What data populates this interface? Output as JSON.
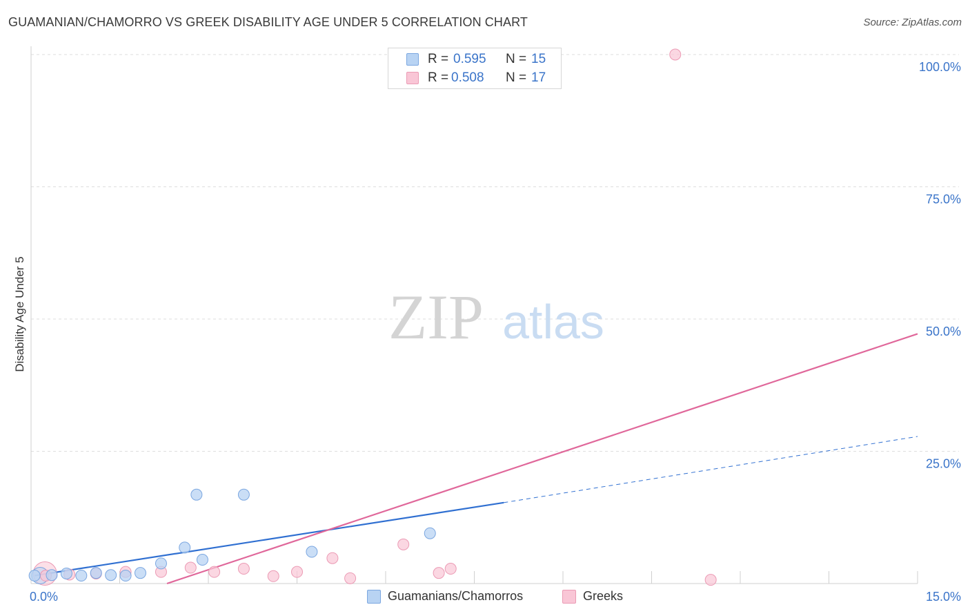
{
  "header": {
    "title": "GUAMANIAN/CHAMORRO VS GREEK DISABILITY AGE UNDER 5 CORRELATION CHART",
    "source": "Source: ZipAtlas.com"
  },
  "watermark": {
    "zip": "ZIP",
    "atlas": "atlas"
  },
  "legend_top": {
    "rows": [
      {
        "r_label": "R =",
        "r_value": "0.595",
        "n_label": "N =",
        "n_value": "15"
      },
      {
        "r_label": "R =",
        "r_value": "0.508",
        "n_label": "N =",
        "n_value": "17"
      }
    ]
  },
  "legend_bottom": {
    "series1": "Guamanians/Chamorros",
    "series2": "Greeks"
  },
  "colors": {
    "blue_fill": "#b8d3f3",
    "blue_stroke": "#7aa6e0",
    "blue_line": "#2f6fd1",
    "pink_fill": "#f9c6d6",
    "pink_stroke": "#eb9ab4",
    "pink_line": "#e0679a",
    "tick_label": "#3a74c9"
  },
  "chart_data": {
    "type": "scatter",
    "title": "GUAMANIAN/CHAMORRO VS GREEK DISABILITY AGE UNDER 5 CORRELATION CHART",
    "xlabel": "",
    "ylabel": "Disability Age Under 5",
    "xlim": [
      0,
      15
    ],
    "ylim": [
      0,
      100
    ],
    "x_tick_labels": [
      "0.0%",
      "15.0%"
    ],
    "y_ticks": [
      25,
      50,
      75,
      100
    ],
    "y_tick_labels": [
      "25.0%",
      "50.0%",
      "75.0%",
      "100.0%"
    ],
    "grid": true,
    "series": [
      {
        "name": "Guamanians/Chamorros",
        "r": 0.595,
        "n": 15,
        "points": [
          {
            "x": 0.06,
            "y": 1.5
          },
          {
            "x": 0.35,
            "y": 1.6
          },
          {
            "x": 0.6,
            "y": 1.9
          },
          {
            "x": 0.85,
            "y": 1.5
          },
          {
            "x": 1.1,
            "y": 2.0
          },
          {
            "x": 1.35,
            "y": 1.6
          },
          {
            "x": 1.6,
            "y": 1.5
          },
          {
            "x": 1.85,
            "y": 2.0
          },
          {
            "x": 2.2,
            "y": 3.8
          },
          {
            "x": 2.6,
            "y": 6.8
          },
          {
            "x": 2.8,
            "y": 16.8
          },
          {
            "x": 2.9,
            "y": 4.5
          },
          {
            "x": 3.6,
            "y": 16.8
          },
          {
            "x": 4.75,
            "y": 6.0
          },
          {
            "x": 6.75,
            "y": 9.5
          }
        ],
        "trend": {
          "x_start": 0.06,
          "y_start": 1.5,
          "x_solid_end": 8.0,
          "y_solid_end": 15.3,
          "x_dash_end": 15.0,
          "y_dash_end": 27.8
        }
      },
      {
        "name": "Greeks",
        "r": 0.508,
        "n": 17,
        "points": [
          {
            "x": 0.25,
            "y": 1.5
          },
          {
            "x": 0.65,
            "y": 1.7
          },
          {
            "x": 1.1,
            "y": 1.9
          },
          {
            "x": 1.6,
            "y": 2.2
          },
          {
            "x": 2.2,
            "y": 2.2
          },
          {
            "x": 2.7,
            "y": 3.0
          },
          {
            "x": 3.1,
            "y": 2.2
          },
          {
            "x": 3.6,
            "y": 2.8
          },
          {
            "x": 4.1,
            "y": 1.4
          },
          {
            "x": 4.5,
            "y": 2.2
          },
          {
            "x": 5.1,
            "y": 4.8
          },
          {
            "x": 5.4,
            "y": 1.0
          },
          {
            "x": 6.3,
            "y": 7.4
          },
          {
            "x": 6.9,
            "y": 2.0
          },
          {
            "x": 7.1,
            "y": 2.8
          },
          {
            "x": 10.9,
            "y": 100.0
          },
          {
            "x": 11.5,
            "y": 0.7
          }
        ],
        "trend": {
          "x_start": 2.3,
          "y_start": 0.0,
          "x_end": 15.0,
          "y_end": 47.2
        }
      }
    ]
  }
}
